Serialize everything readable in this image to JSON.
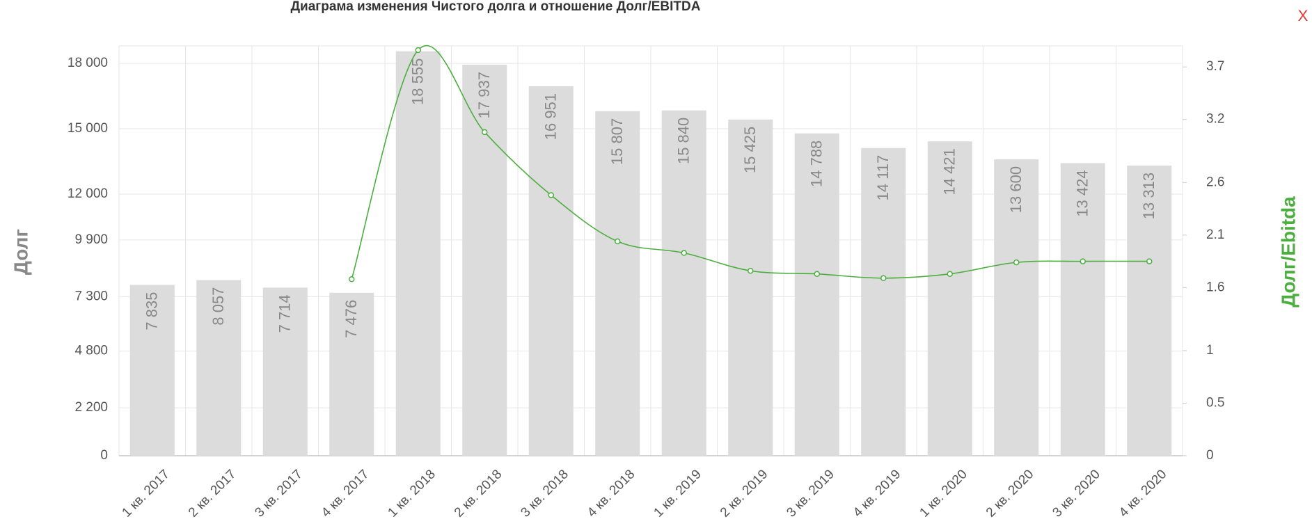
{
  "chart_data": {
    "type": "bar_line",
    "title": "Диаграма изменения Чистого долга и отношение Долг/EBITDA",
    "y_label": "Долг",
    "y2_label": "Долг/Ebitda",
    "categories": [
      "1 кв. 2017",
      "2 кв. 2017",
      "3 кв. 2017",
      "4 кв. 2017",
      "1 кв. 2018",
      "2 кв. 2018",
      "3 кв. 2018",
      "4 кв. 2018",
      "1 кв. 2019",
      "2 кв. 2019",
      "3 кв. 2019",
      "4 кв. 2019",
      "1 кв. 2020",
      "2 кв. 2020",
      "3 кв. 2020",
      "4 кв. 2020"
    ],
    "series": [
      {
        "name": "Долг",
        "type": "bar",
        "color": "#dcdcdc",
        "values": [
          7835,
          8057,
          7714,
          7476,
          18555,
          17937,
          16951,
          15807,
          15840,
          15425,
          14788,
          14117,
          14421,
          13600,
          13424,
          13313
        ],
        "value_labels": [
          "7 835",
          "8 057",
          "7 714",
          "7 476",
          "18 555",
          "17 937",
          "16 951",
          "15 807",
          "15 840",
          "15 425",
          "14 788",
          "14 117",
          "14 421",
          "13 600",
          "13 424",
          "13 313"
        ]
      },
      {
        "name": "Долг/Ebitda",
        "type": "line",
        "axis": "y2",
        "color": "#4cae3f",
        "values": [
          null,
          null,
          null,
          1.68,
          3.86,
          3.08,
          2.48,
          2.04,
          1.93,
          1.76,
          1.73,
          1.69,
          1.73,
          1.84,
          1.85,
          1.85
        ]
      }
    ],
    "ylim": [
      0,
      18800
    ],
    "yticks": [
      0,
      {
        "value": 2200,
        "label": "2 200"
      },
      {
        "value": 4800,
        "label": "4 800"
      },
      {
        "value": 7300,
        "label": "7 300"
      },
      {
        "value": 9900,
        "label": "9 900"
      },
      {
        "value": 12000,
        "label": "12 000"
      },
      {
        "value": 15000,
        "label": "15 000"
      },
      {
        "value": 18000,
        "label": "18 000"
      }
    ],
    "y2lim": [
      0,
      3.9
    ],
    "y2ticks": [
      0,
      0.5,
      1,
      1.6,
      2.1,
      2.6,
      3.2,
      3.7
    ],
    "grid": true
  },
  "close_button": "X"
}
